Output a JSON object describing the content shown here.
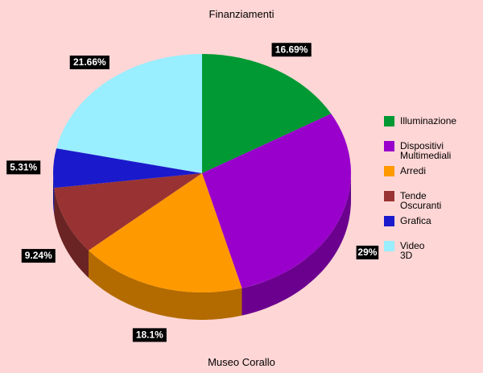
{
  "chart_data": {
    "type": "pie",
    "title": "Finanziamenti",
    "xlabel": "Museo Corallo",
    "legend_position": "right",
    "slices": [
      {
        "label": "Illuminazione",
        "value": 16.69,
        "value_label": "16.69%",
        "color": "#009933"
      },
      {
        "label": "Dispositivi Multimediali",
        "value": 29,
        "value_label": "29%",
        "color": "#9900cc"
      },
      {
        "label": "Arredi",
        "value": 18.1,
        "value_label": "18.1%",
        "color": "#ff9900"
      },
      {
        "label": "Tende Oscuranti",
        "value": 9.24,
        "value_label": "9.24%",
        "color": "#993333"
      },
      {
        "label": "Grafica",
        "value": 5.31,
        "value_label": "5.31%",
        "color": "#1a1acc"
      },
      {
        "label": "Video 3D",
        "value": 21.66,
        "value_label": "21.66%",
        "color": "#99eeff"
      }
    ]
  }
}
